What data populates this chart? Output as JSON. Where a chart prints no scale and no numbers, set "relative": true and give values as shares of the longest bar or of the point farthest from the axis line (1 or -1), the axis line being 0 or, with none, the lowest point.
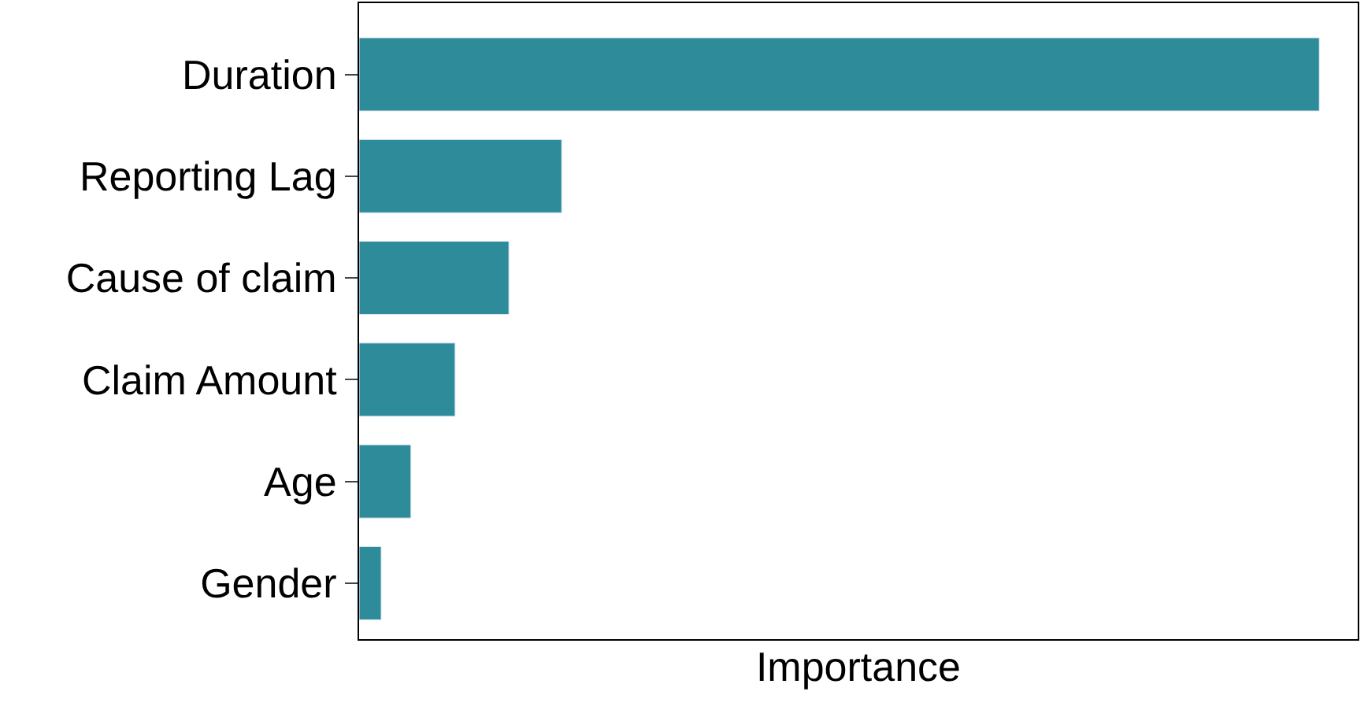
{
  "chart_data": {
    "type": "bar",
    "orientation": "horizontal",
    "relative": true,
    "xlabel": "Importance",
    "categories": [
      "Duration",
      "Reporting Lag",
      "Cause of claim",
      "Claim Amount",
      "Age",
      "Gender"
    ],
    "values": [
      1,
      0.211,
      0.156,
      0.1,
      0.054,
      0.023
    ],
    "color": "#2e8b9a",
    "legend": false
  }
}
